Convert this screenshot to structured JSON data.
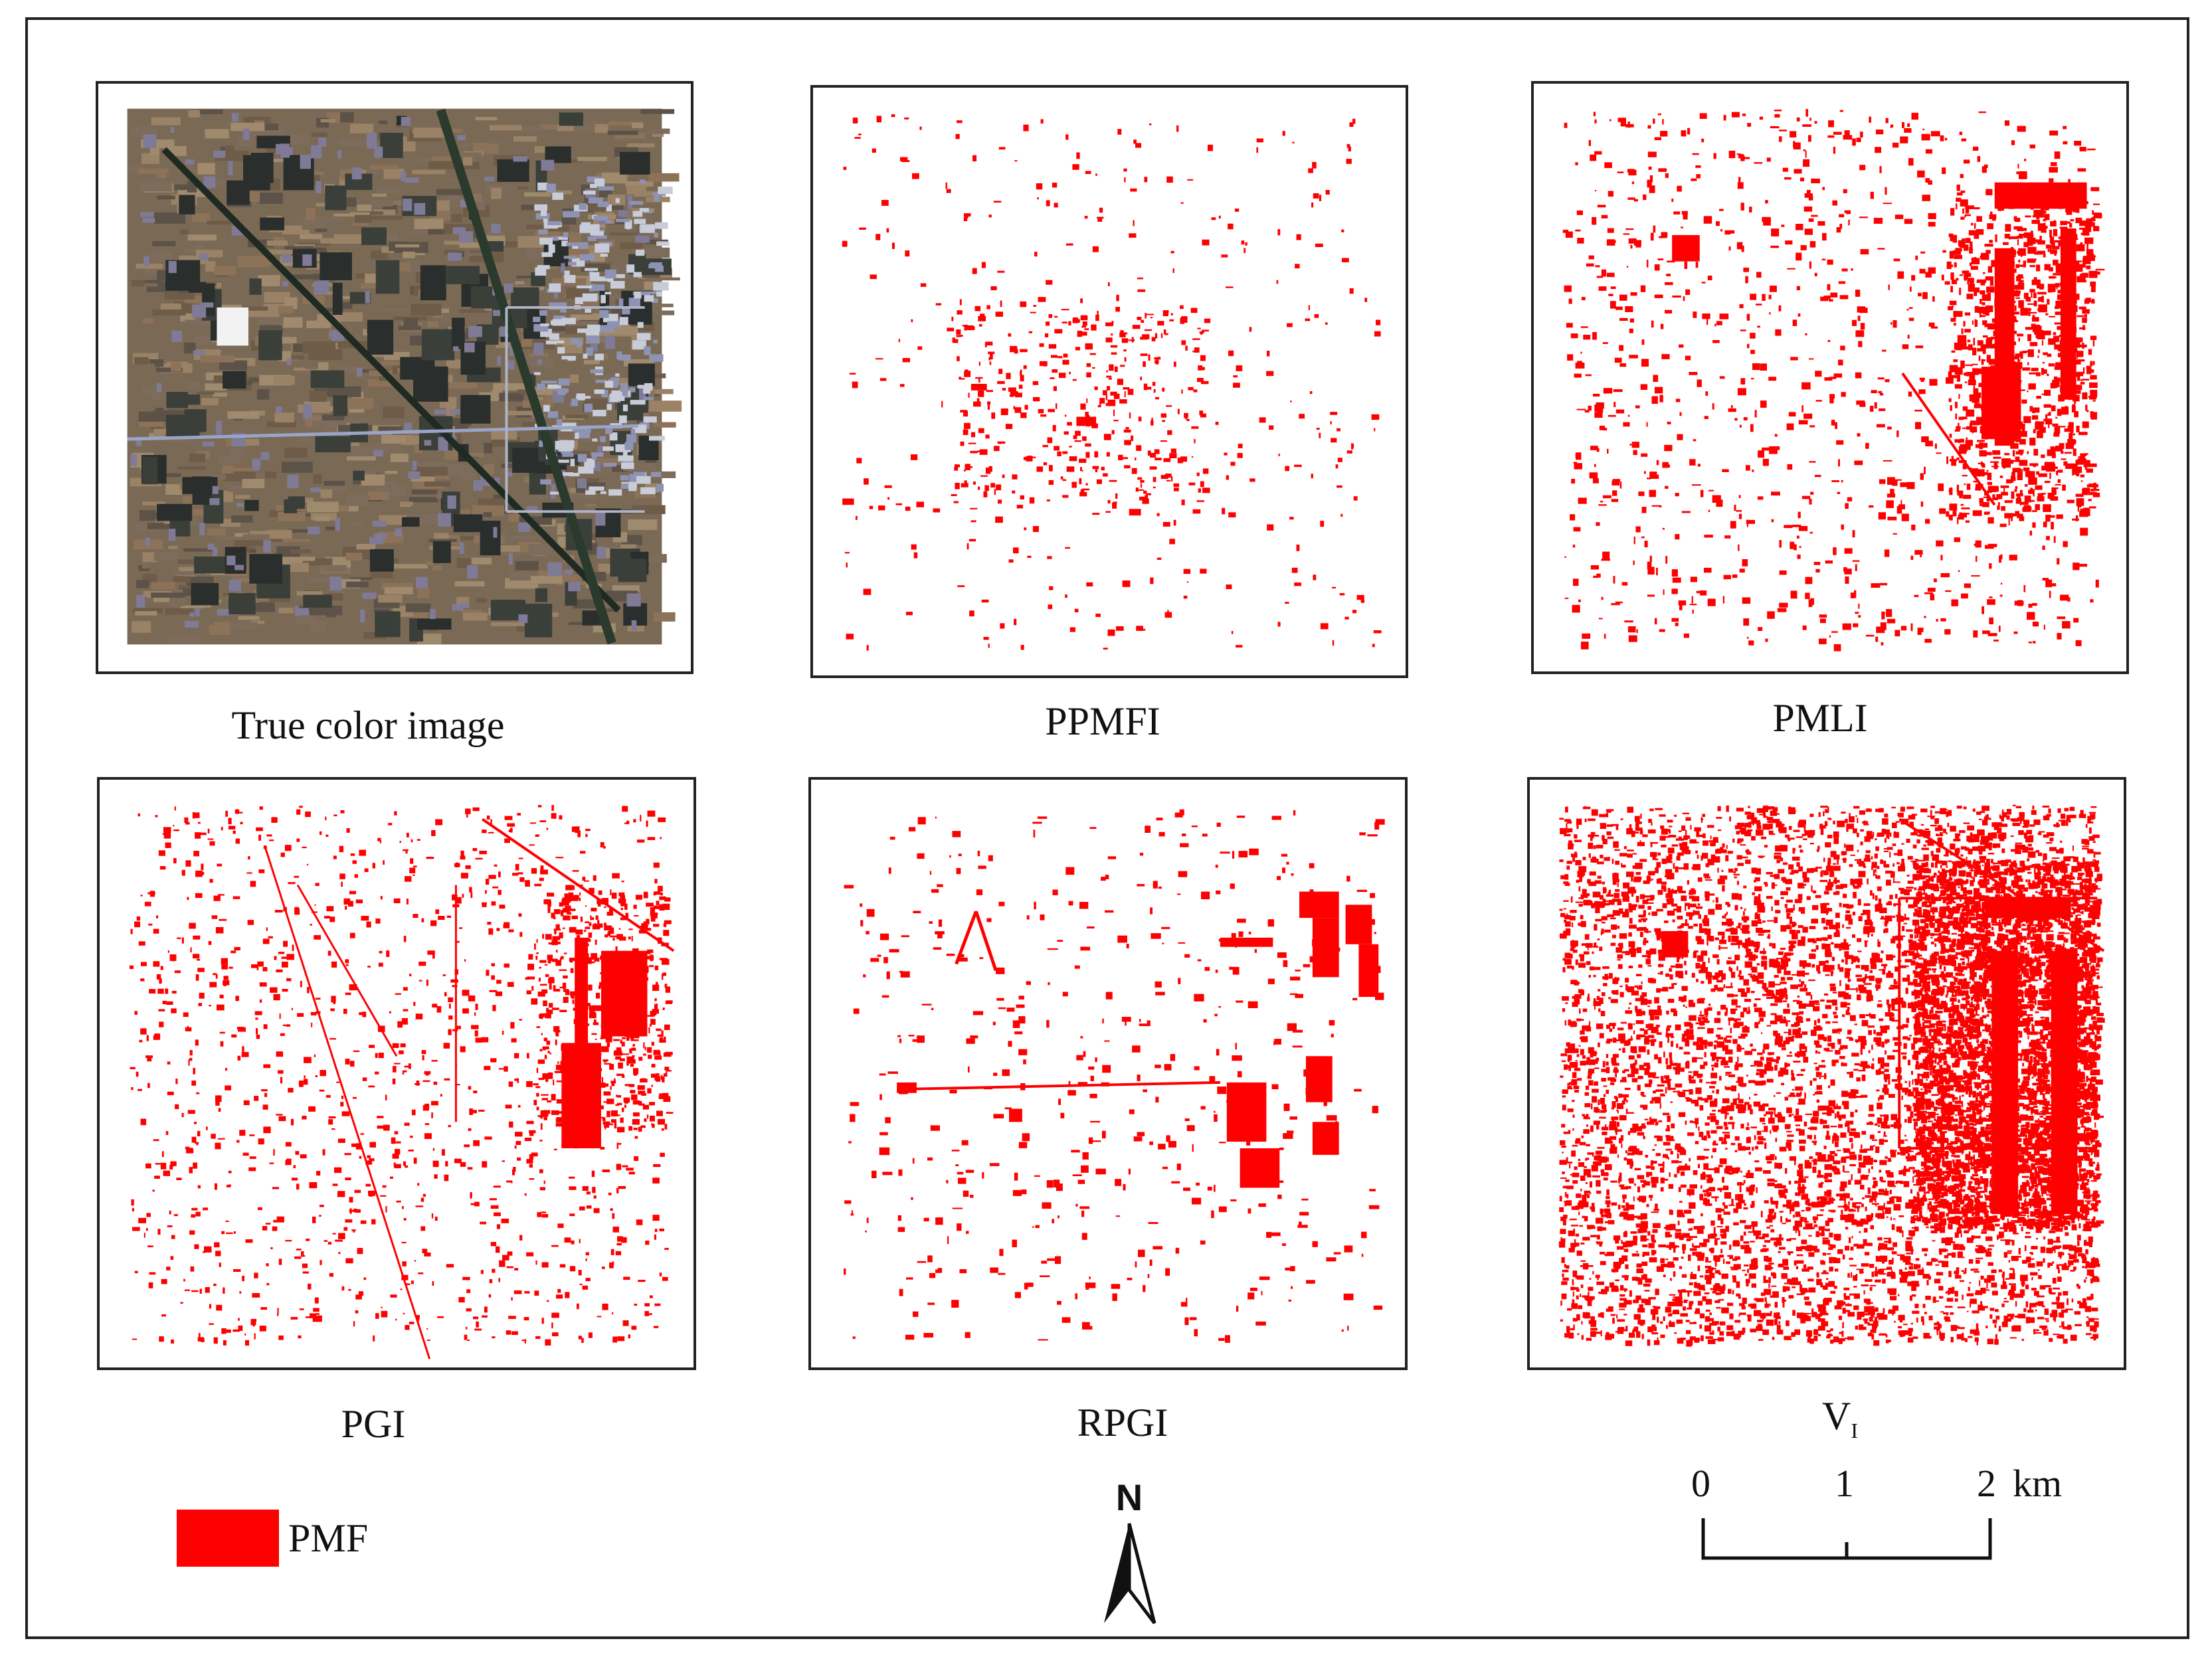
{
  "panels": [
    {
      "id": "true-color",
      "label": "True color image",
      "kind": "satellite"
    },
    {
      "id": "ppmfi",
      "label": "PPMFI",
      "kind": "mask",
      "density": 0.18
    },
    {
      "id": "pmli",
      "label": "PMLI",
      "kind": "mask",
      "density": 0.55
    },
    {
      "id": "pgi",
      "label": "PGI",
      "kind": "mask",
      "density": 0.5
    },
    {
      "id": "rpgi",
      "label": "RPGI",
      "kind": "mask",
      "density": 0.3
    },
    {
      "id": "vi",
      "label_main": "V",
      "label_sub": "I",
      "kind": "mask",
      "density": 1.0
    }
  ],
  "legend": {
    "label": "PMF",
    "color": "#ff0000"
  },
  "north_arrow": {
    "label": "N"
  },
  "scale_bar": {
    "ticks": [
      "0",
      "1",
      "2"
    ],
    "unit": "km"
  },
  "colors": {
    "mask": "#ff0000",
    "frame": "#222222"
  }
}
